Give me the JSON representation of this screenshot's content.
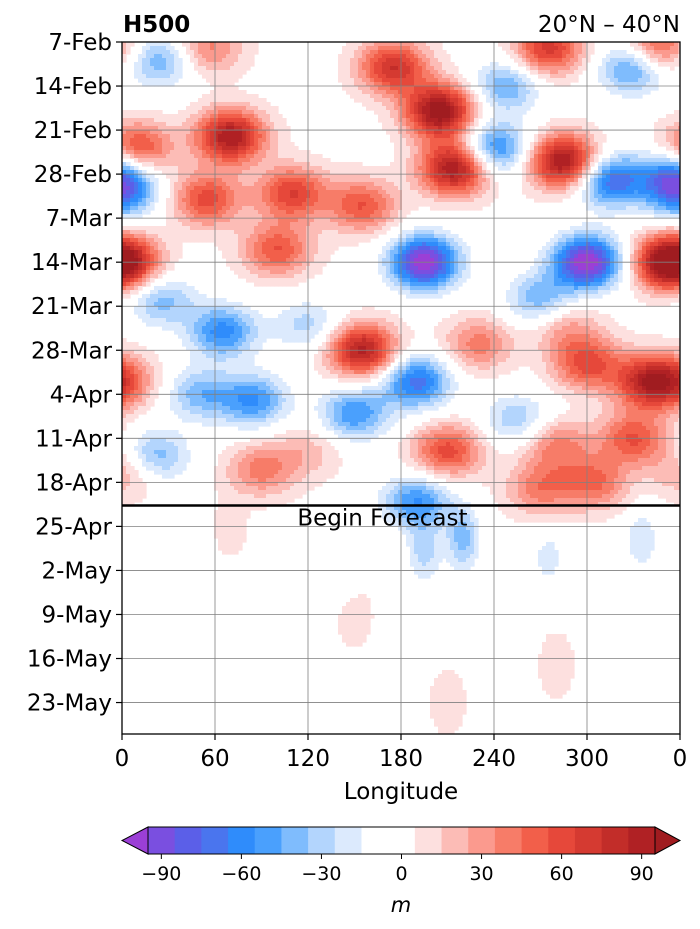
{
  "chart_data": {
    "type": "heatmap",
    "title_left": "H500",
    "title_right": "20°N – 40°N",
    "xlabel": "Longitude",
    "x_ticks": [
      "0",
      "60",
      "120",
      "180",
      "240",
      "300",
      "0"
    ],
    "y_ticks": [
      "7-Feb",
      "14-Feb",
      "21-Feb",
      "28-Feb",
      "7-Mar",
      "14-Mar",
      "21-Mar",
      "28-Mar",
      "4-Apr",
      "11-Apr",
      "18-Apr",
      "25-Apr",
      "2-May",
      "9-May",
      "16-May",
      "23-May"
    ],
    "forecast_label": "Begin Forecast",
    "forecast_start": "22-Apr",
    "colorbar": {
      "label": "m",
      "ticks": [
        "−90",
        "−60",
        "−30",
        "0",
        "30",
        "60",
        "90"
      ],
      "levels": [
        -105,
        -95,
        -85,
        -75,
        -65,
        -55,
        -45,
        -35,
        -25,
        -15,
        -5,
        5,
        15,
        25,
        35,
        45,
        55,
        65,
        75,
        85,
        95,
        105
      ],
      "colors": [
        "#9b3fd6",
        "#7a4fe0",
        "#5b5fe8",
        "#4a75ee",
        "#2f8cfb",
        "#4aa0fd",
        "#7fbcfd",
        "#b3d5fd",
        "#dceafd",
        "#ffffff",
        "#ffffff",
        "#fde0df",
        "#fcbcb6",
        "#fb9a8e",
        "#f77c68",
        "#f25f4a",
        "#e6483a",
        "#d53a31",
        "#c22d29",
        "#b02124",
        "#a01c20"
      ]
    },
    "features": [
      {
        "lon": 25,
        "date": "10-Feb",
        "value": -45
      },
      {
        "lon": 55,
        "date": "8-Feb",
        "value": 40
      },
      {
        "lon": 10,
        "date": "24-Feb",
        "value": 65
      },
      {
        "lon": 0,
        "date": "3-Mar",
        "value": -55
      },
      {
        "lon": 55,
        "date": "4-Mar",
        "value": 60
      },
      {
        "lon": 70,
        "date": "22-Feb",
        "value": 95
      },
      {
        "lon": 110,
        "date": "3-Mar",
        "value": 65
      },
      {
        "lon": 100,
        "date": "12-Mar",
        "value": 55
      },
      {
        "lon": 155,
        "date": "5-Mar",
        "value": 55
      },
      {
        "lon": 175,
        "date": "11-Feb",
        "value": 75
      },
      {
        "lon": 205,
        "date": "18-Feb",
        "value": 105
      },
      {
        "lon": 215,
        "date": "27-Feb",
        "value": 100
      },
      {
        "lon": 195,
        "date": "14-Mar",
        "value": -105
      },
      {
        "lon": 240,
        "date": "24-Feb",
        "value": -65
      },
      {
        "lon": 248,
        "date": "14-Feb",
        "value": -45
      },
      {
        "lon": 275,
        "date": "8-Feb",
        "value": 70
      },
      {
        "lon": 285,
        "date": "26-Feb",
        "value": 100
      },
      {
        "lon": 300,
        "date": "14-Mar",
        "value": -105
      },
      {
        "lon": 315,
        "date": "1-Mar",
        "value": -75
      },
      {
        "lon": 330,
        "date": "11-Feb",
        "value": -60
      },
      {
        "lon": 345,
        "date": "8-Feb",
        "value": 60
      },
      {
        "lon": 352,
        "date": "14-Mar",
        "value": 95
      },
      {
        "lon": 357,
        "date": "28-Feb",
        "value": -60
      },
      {
        "lon": 5,
        "date": "14-Mar",
        "value": 50
      },
      {
        "lon": 65,
        "date": "25-Mar",
        "value": -60
      },
      {
        "lon": 25,
        "date": "20-Mar",
        "value": -40
      },
      {
        "lon": 85,
        "date": "5-Apr",
        "value": -55
      },
      {
        "lon": 50,
        "date": "4-Apr",
        "value": -40
      },
      {
        "lon": 0,
        "date": "2-Apr",
        "value": 45
      },
      {
        "lon": 120,
        "date": "24-Mar",
        "value": -30
      },
      {
        "lon": 155,
        "date": "28-Mar",
        "value": 90
      },
      {
        "lon": 150,
        "date": "7-Apr",
        "value": -55
      },
      {
        "lon": 190,
        "date": "2-Apr",
        "value": -70
      },
      {
        "lon": 210,
        "date": "13-Apr",
        "value": 60
      },
      {
        "lon": 230,
        "date": "27-Mar",
        "value": 40
      },
      {
        "lon": 270,
        "date": "20-Mar",
        "value": -45
      },
      {
        "lon": 300,
        "date": "30-Mar",
        "value": 60
      },
      {
        "lon": 340,
        "date": "2-Apr",
        "value": 80
      },
      {
        "lon": 330,
        "date": "11-Apr",
        "value": 55
      },
      {
        "lon": 280,
        "date": "12-Apr",
        "value": 40
      },
      {
        "lon": 255,
        "date": "8-Apr",
        "value": -35
      },
      {
        "lon": 20,
        "date": "14-Apr",
        "value": -50
      },
      {
        "lon": 90,
        "date": "16-Apr",
        "value": 40
      },
      {
        "lon": 120,
        "date": "13-Apr",
        "value": 20
      },
      {
        "lon": 365,
        "date": "16-Apr",
        "value": 35
      },
      {
        "lon": 190,
        "date": "21-Apr",
        "value": -55
      },
      {
        "lon": 270,
        "date": "19-Apr",
        "value": 40
      },
      {
        "lon": 305,
        "date": "18-Apr",
        "value": 45
      },
      {
        "lon": 285,
        "date": "24-Mar",
        "value": 30
      },
      {
        "lon": 195,
        "date": "29-Apr",
        "value": -30
      },
      {
        "lon": 220,
        "date": "27-Apr",
        "value": -40
      },
      {
        "lon": 145,
        "date": "2-May",
        "value": -15
      },
      {
        "lon": 275,
        "date": "30-Apr",
        "value": -20
      },
      {
        "lon": 335,
        "date": "27-Apr",
        "value": -25
      },
      {
        "lon": 320,
        "date": "11-May",
        "value": -15
      },
      {
        "lon": 250,
        "date": "15-May",
        "value": -15
      },
      {
        "lon": 280,
        "date": "17-May",
        "value": 15
      },
      {
        "lon": 210,
        "date": "23-May",
        "value": 15
      },
      {
        "lon": 150,
        "date": "9-May",
        "value": 15
      },
      {
        "lon": 70,
        "date": "25-Apr",
        "value": 12
      },
      {
        "lon": 35,
        "date": "25-Apr",
        "value": -12
      }
    ]
  }
}
